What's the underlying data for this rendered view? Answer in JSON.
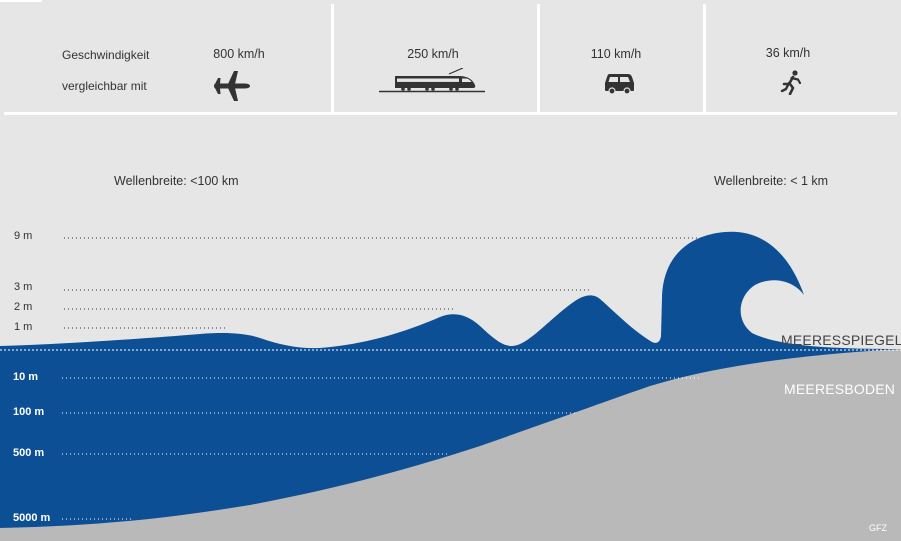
{
  "header": {
    "label_line1": "Geschwindigkeit",
    "label_line2": "vergleichbar mit",
    "speeds": [
      {
        "value": "800 km/h",
        "icon": "airplane-icon"
      },
      {
        "value": "250 km/h",
        "icon": "train-icon"
      },
      {
        "value": "110 km/h",
        "icon": "car-icon"
      },
      {
        "value": "36 km/h",
        "icon": "runner-icon"
      }
    ]
  },
  "wave_widths": {
    "left": "Wellenbreite: <100 km",
    "right": "Wellenbreite: < 1 km"
  },
  "wave_heights": [
    "9 m",
    "3 m",
    "2 m",
    "1 m"
  ],
  "sea_level_label": "MEERESSPIEGEL",
  "sea_floor_label": "MEERESBODEN",
  "depths": [
    "10 m",
    "100 m",
    "500 m",
    "5000 m"
  ],
  "credit": "GFZ",
  "colors": {
    "background": "#e6e6e6",
    "water": "#0d4f95",
    "seafloor": "#b9b9b9",
    "divider": "#ffffff"
  }
}
